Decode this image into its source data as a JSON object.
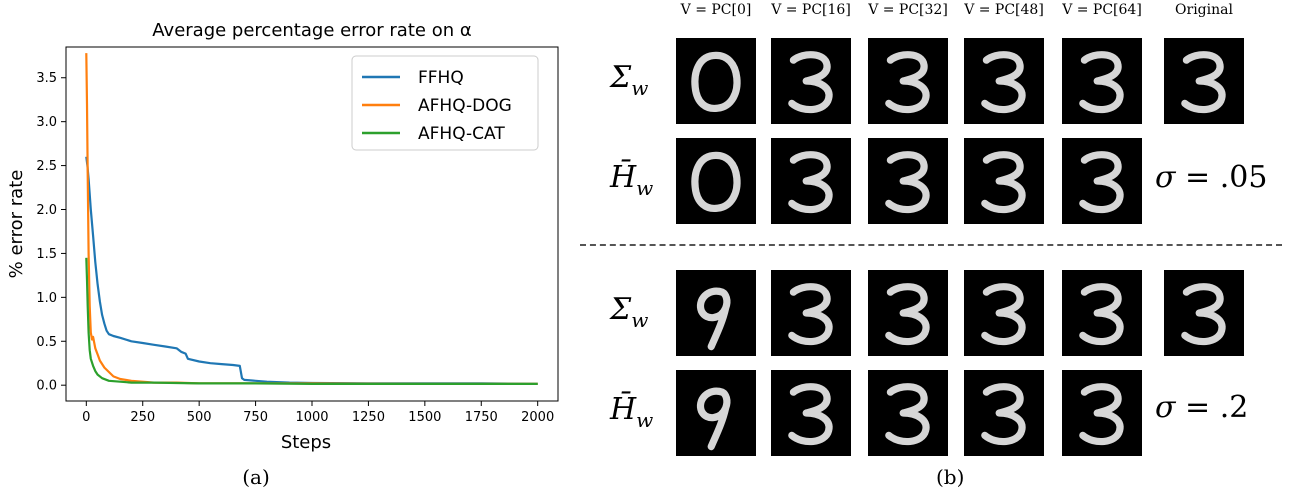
{
  "chart_data": {
    "type": "line",
    "title": "Average percentage error rate on α",
    "xlabel": "Steps",
    "ylabel": "% error rate",
    "xlim": [
      -90,
      2090
    ],
    "ylim": [
      -0.18,
      3.85
    ],
    "xticks": [
      0,
      250,
      500,
      750,
      1000,
      1250,
      1500,
      1750,
      2000
    ],
    "yticks": [
      0.0,
      0.5,
      1.0,
      1.5,
      2.0,
      2.5,
      3.0,
      3.5
    ],
    "grid": false,
    "legend_position": "top-right",
    "series": [
      {
        "name": "FFHQ",
        "color": "#1f77b4",
        "x": [
          0,
          5,
          10,
          20,
          30,
          40,
          50,
          60,
          70,
          80,
          90,
          100,
          120,
          150,
          200,
          250,
          300,
          350,
          400,
          420,
          440,
          450,
          500,
          550,
          600,
          650,
          680,
          690,
          700,
          750,
          800,
          900,
          1000,
          1250,
          1500,
          1750,
          2000
        ],
        "y": [
          2.6,
          2.5,
          2.35,
          2.0,
          1.7,
          1.4,
          1.15,
          0.95,
          0.8,
          0.7,
          0.62,
          0.58,
          0.56,
          0.54,
          0.5,
          0.48,
          0.46,
          0.44,
          0.42,
          0.38,
          0.36,
          0.3,
          0.27,
          0.25,
          0.24,
          0.23,
          0.22,
          0.08,
          0.06,
          0.05,
          0.04,
          0.03,
          0.025,
          0.02,
          0.02,
          0.02,
          0.015
        ]
      },
      {
        "name": "AFHQ-DOG",
        "color": "#ff7f0e",
        "x": [
          0,
          3,
          6,
          10,
          15,
          20,
          25,
          30,
          40,
          50,
          60,
          80,
          100,
          120,
          150,
          200,
          250,
          300,
          400,
          500,
          750,
          1000,
          1500,
          2000
        ],
        "y": [
          3.78,
          3.2,
          2.4,
          1.5,
          0.9,
          0.6,
          0.52,
          0.55,
          0.42,
          0.35,
          0.28,
          0.2,
          0.15,
          0.1,
          0.07,
          0.05,
          0.04,
          0.03,
          0.03,
          0.02,
          0.02,
          0.02,
          0.015,
          0.015
        ]
      },
      {
        "name": "AFHQ-CAT",
        "color": "#2ca02c",
        "x": [
          0,
          3,
          6,
          10,
          15,
          20,
          30,
          40,
          50,
          70,
          100,
          150,
          200,
          300,
          500,
          750,
          1000,
          1500,
          2000
        ],
        "y": [
          1.45,
          1.2,
          0.9,
          0.6,
          0.4,
          0.3,
          0.22,
          0.16,
          0.12,
          0.08,
          0.05,
          0.04,
          0.03,
          0.03,
          0.02,
          0.02,
          0.015,
          0.015,
          0.015
        ]
      }
    ]
  },
  "panel_a": {
    "caption": "(a)"
  },
  "panel_b": {
    "caption": "(b)",
    "columns": [
      "V = PC[0]",
      "V = PC[16]",
      "V = PC[32]",
      "V = PC[48]",
      "V = PC[64]",
      "Original"
    ],
    "row_labels": [
      {
        "main": "Σ",
        "sub": "w"
      },
      {
        "main": "H̄",
        "sub": "w"
      },
      {
        "main": "Σ",
        "sub": "w"
      },
      {
        "main": "H̄",
        "sub": "w"
      }
    ],
    "sigma_labels": [
      {
        "sym": "σ",
        "value": " = .05"
      },
      {
        "sym": "σ",
        "value": " = .2"
      }
    ]
  }
}
